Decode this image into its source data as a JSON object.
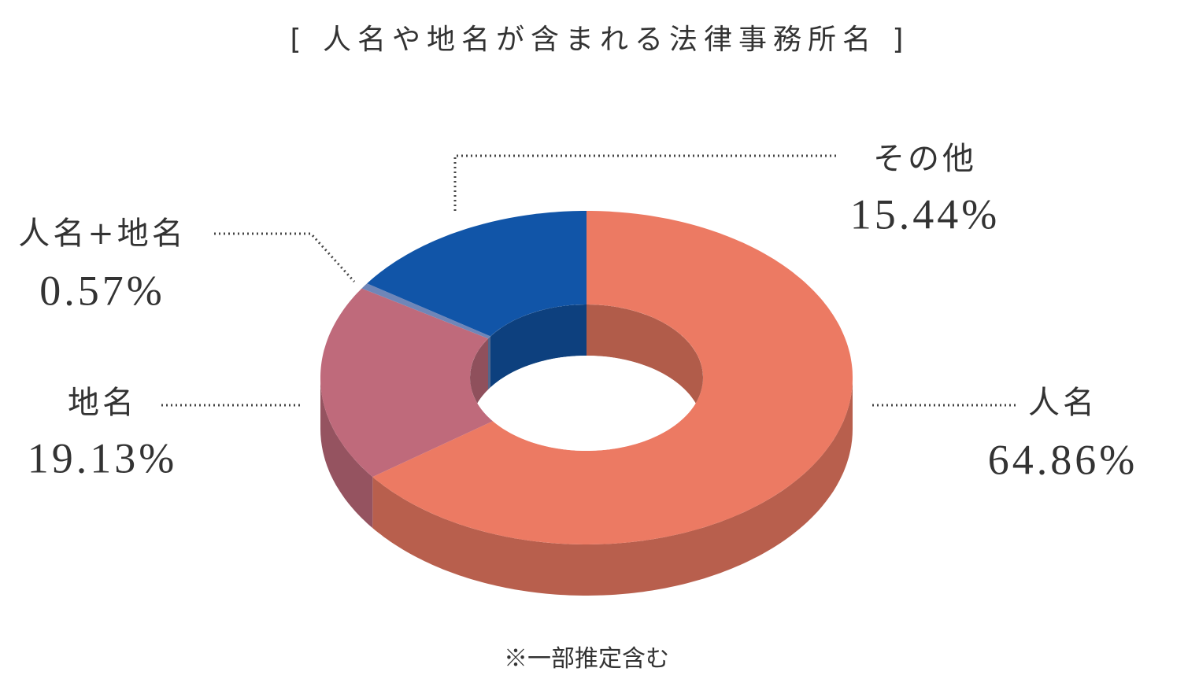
{
  "chart_data": {
    "type": "pie",
    "title": "[ 人名や地名が含まれる法律事務所名 ]",
    "note": "※一部推定含む",
    "categories": [
      "人名",
      "地名",
      "人名+地名",
      "その他"
    ],
    "values": [
      64.86,
      19.13,
      0.57,
      15.44
    ],
    "value_labels": [
      "64.86%",
      "19.13%",
      "0.57%",
      "15.44%"
    ],
    "colors": [
      "#ec7a63",
      "#bf6a7b",
      "#6f86b8",
      "#1155a8"
    ]
  }
}
